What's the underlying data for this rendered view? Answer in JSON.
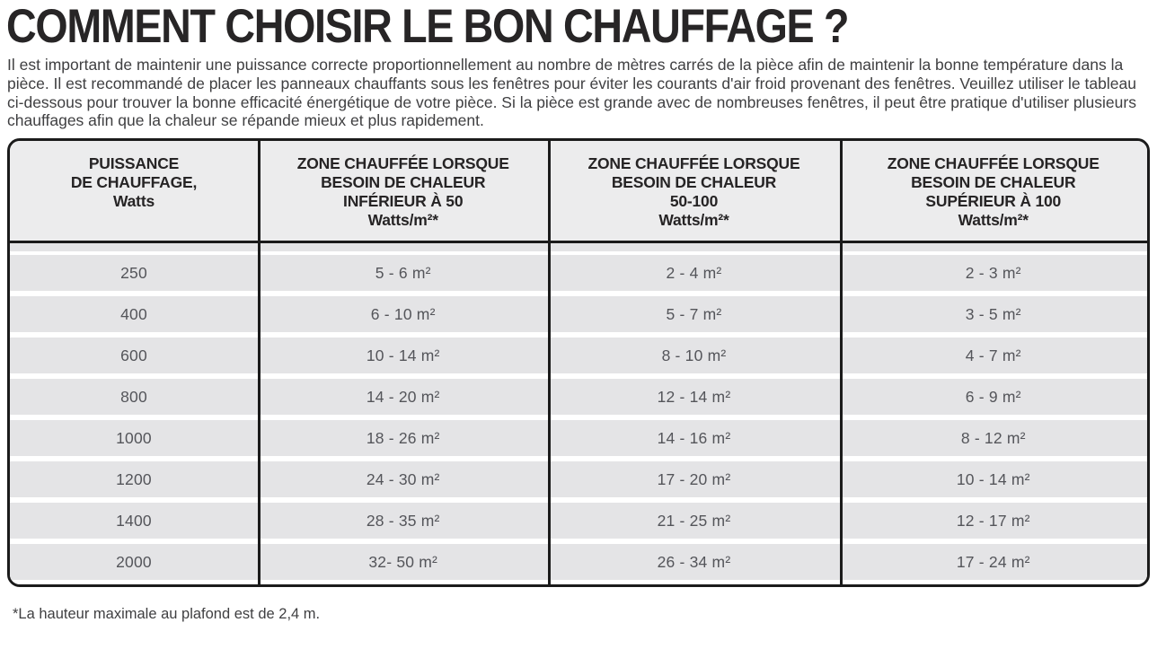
{
  "page": {
    "title": "COMMENT CHOISIR LE BON CHAUFFAGE ?",
    "intro": "Il est important de maintenir une puissance correcte proportionnellement au nombre de mètres carrés de la pièce afin de maintenir la bonne température dans la pièce. Il est recommandé de placer les panneaux chauffants sous les fenêtres pour éviter les courants d'air froid provenant des fenêtres. Veuillez utiliser le tableau ci-dessous pour trouver la bonne efficacité énergétique de votre pièce. Si la pièce est grande avec de nombreuses fenêtres, il peut être pratique d'utiliser plusieurs chauffages afin que la chaleur se répande mieux et plus rapidement.",
    "footnote": "*La hauteur maximale au plafond est de 2,4 m."
  },
  "colors": {
    "table_border": "#1b1b1b",
    "header_background": "#ececed",
    "row_background": "#e4e4e6",
    "header_text": "#262425",
    "cell_text": "#54555a"
  },
  "table": {
    "headers": [
      {
        "lines": [
          "PUISSANCE",
          "DE CHAUFFAGE,",
          "Watts"
        ]
      },
      {
        "lines": [
          "ZONE CHAUFFÉE LORSQUE",
          "BESOIN DE CHALEUR",
          "INFÉRIEUR À 50",
          "Watts/m²*"
        ]
      },
      {
        "lines": [
          "ZONE CHAUFFÉE LORSQUE",
          "BESOIN DE CHALEUR",
          "50-100",
          "Watts/m²*"
        ]
      },
      {
        "lines": [
          "ZONE CHAUFFÉE LORSQUE",
          "BESOIN DE CHALEUR",
          "SUPÉRIEUR À 100",
          "Watts/m²*"
        ]
      }
    ],
    "rows": [
      {
        "cells": [
          "250",
          "5 - 6 m²",
          "2 - 4 m²",
          "2 - 3 m²"
        ]
      },
      {
        "cells": [
          "400",
          "6 - 10 m²",
          "5 - 7 m²",
          "3 - 5 m²"
        ]
      },
      {
        "cells": [
          "600",
          "10 - 14 m²",
          "8 - 10 m²",
          "4 - 7 m²"
        ]
      },
      {
        "cells": [
          "800",
          "14 - 20 m²",
          "12 - 14 m²",
          "6 - 9 m²"
        ]
      },
      {
        "cells": [
          "1000",
          "18 - 26 m²",
          "14 - 16 m²",
          "8 - 12 m²"
        ]
      },
      {
        "cells": [
          "1200",
          "24 - 30 m²",
          "17 - 20 m²",
          "10 - 14 m²"
        ]
      },
      {
        "cells": [
          "1400",
          "28 - 35 m²",
          "21 - 25 m²",
          "12 - 17 m²"
        ]
      },
      {
        "cells": [
          "2000",
          "32- 50 m²",
          "26 - 34 m²",
          "17 - 24 m²"
        ]
      }
    ]
  }
}
